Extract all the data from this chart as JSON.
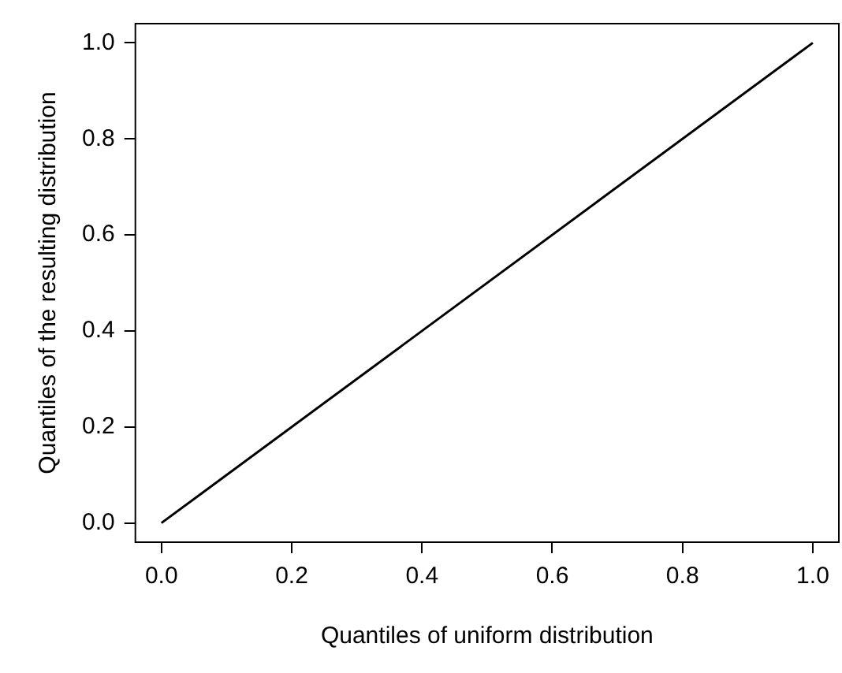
{
  "chart_data": {
    "type": "line",
    "xlabel": "Quantiles of uniform distribution",
    "ylabel": "Quantiles of the resulting distribution",
    "x": [
      0,
      1
    ],
    "series": [
      {
        "color": "#000000",
        "values": [
          0,
          1
        ]
      }
    ],
    "xlim": [
      -0.04,
      1.04
    ],
    "ylim": [
      -0.04,
      1.04
    ],
    "xticks": [
      {
        "value": 0,
        "label": "0.0"
      },
      {
        "value": 0.2,
        "label": "0.2"
      },
      {
        "value": 0.4,
        "label": "0.4"
      },
      {
        "value": 0.6,
        "label": "0.6"
      },
      {
        "value": 0.8,
        "label": "0.8"
      },
      {
        "value": 1,
        "label": "1.0"
      }
    ],
    "yticks": [
      {
        "value": 0,
        "label": "0.0"
      },
      {
        "value": 0.2,
        "label": "0.2"
      },
      {
        "value": 0.4,
        "label": "0.4"
      },
      {
        "value": 0.6,
        "label": "0.6"
      },
      {
        "value": 0.8,
        "label": "0.8"
      },
      {
        "value": 1,
        "label": "1.0"
      }
    ],
    "grid": false,
    "legend": false,
    "marker": "none",
    "line_style": "solid"
  }
}
